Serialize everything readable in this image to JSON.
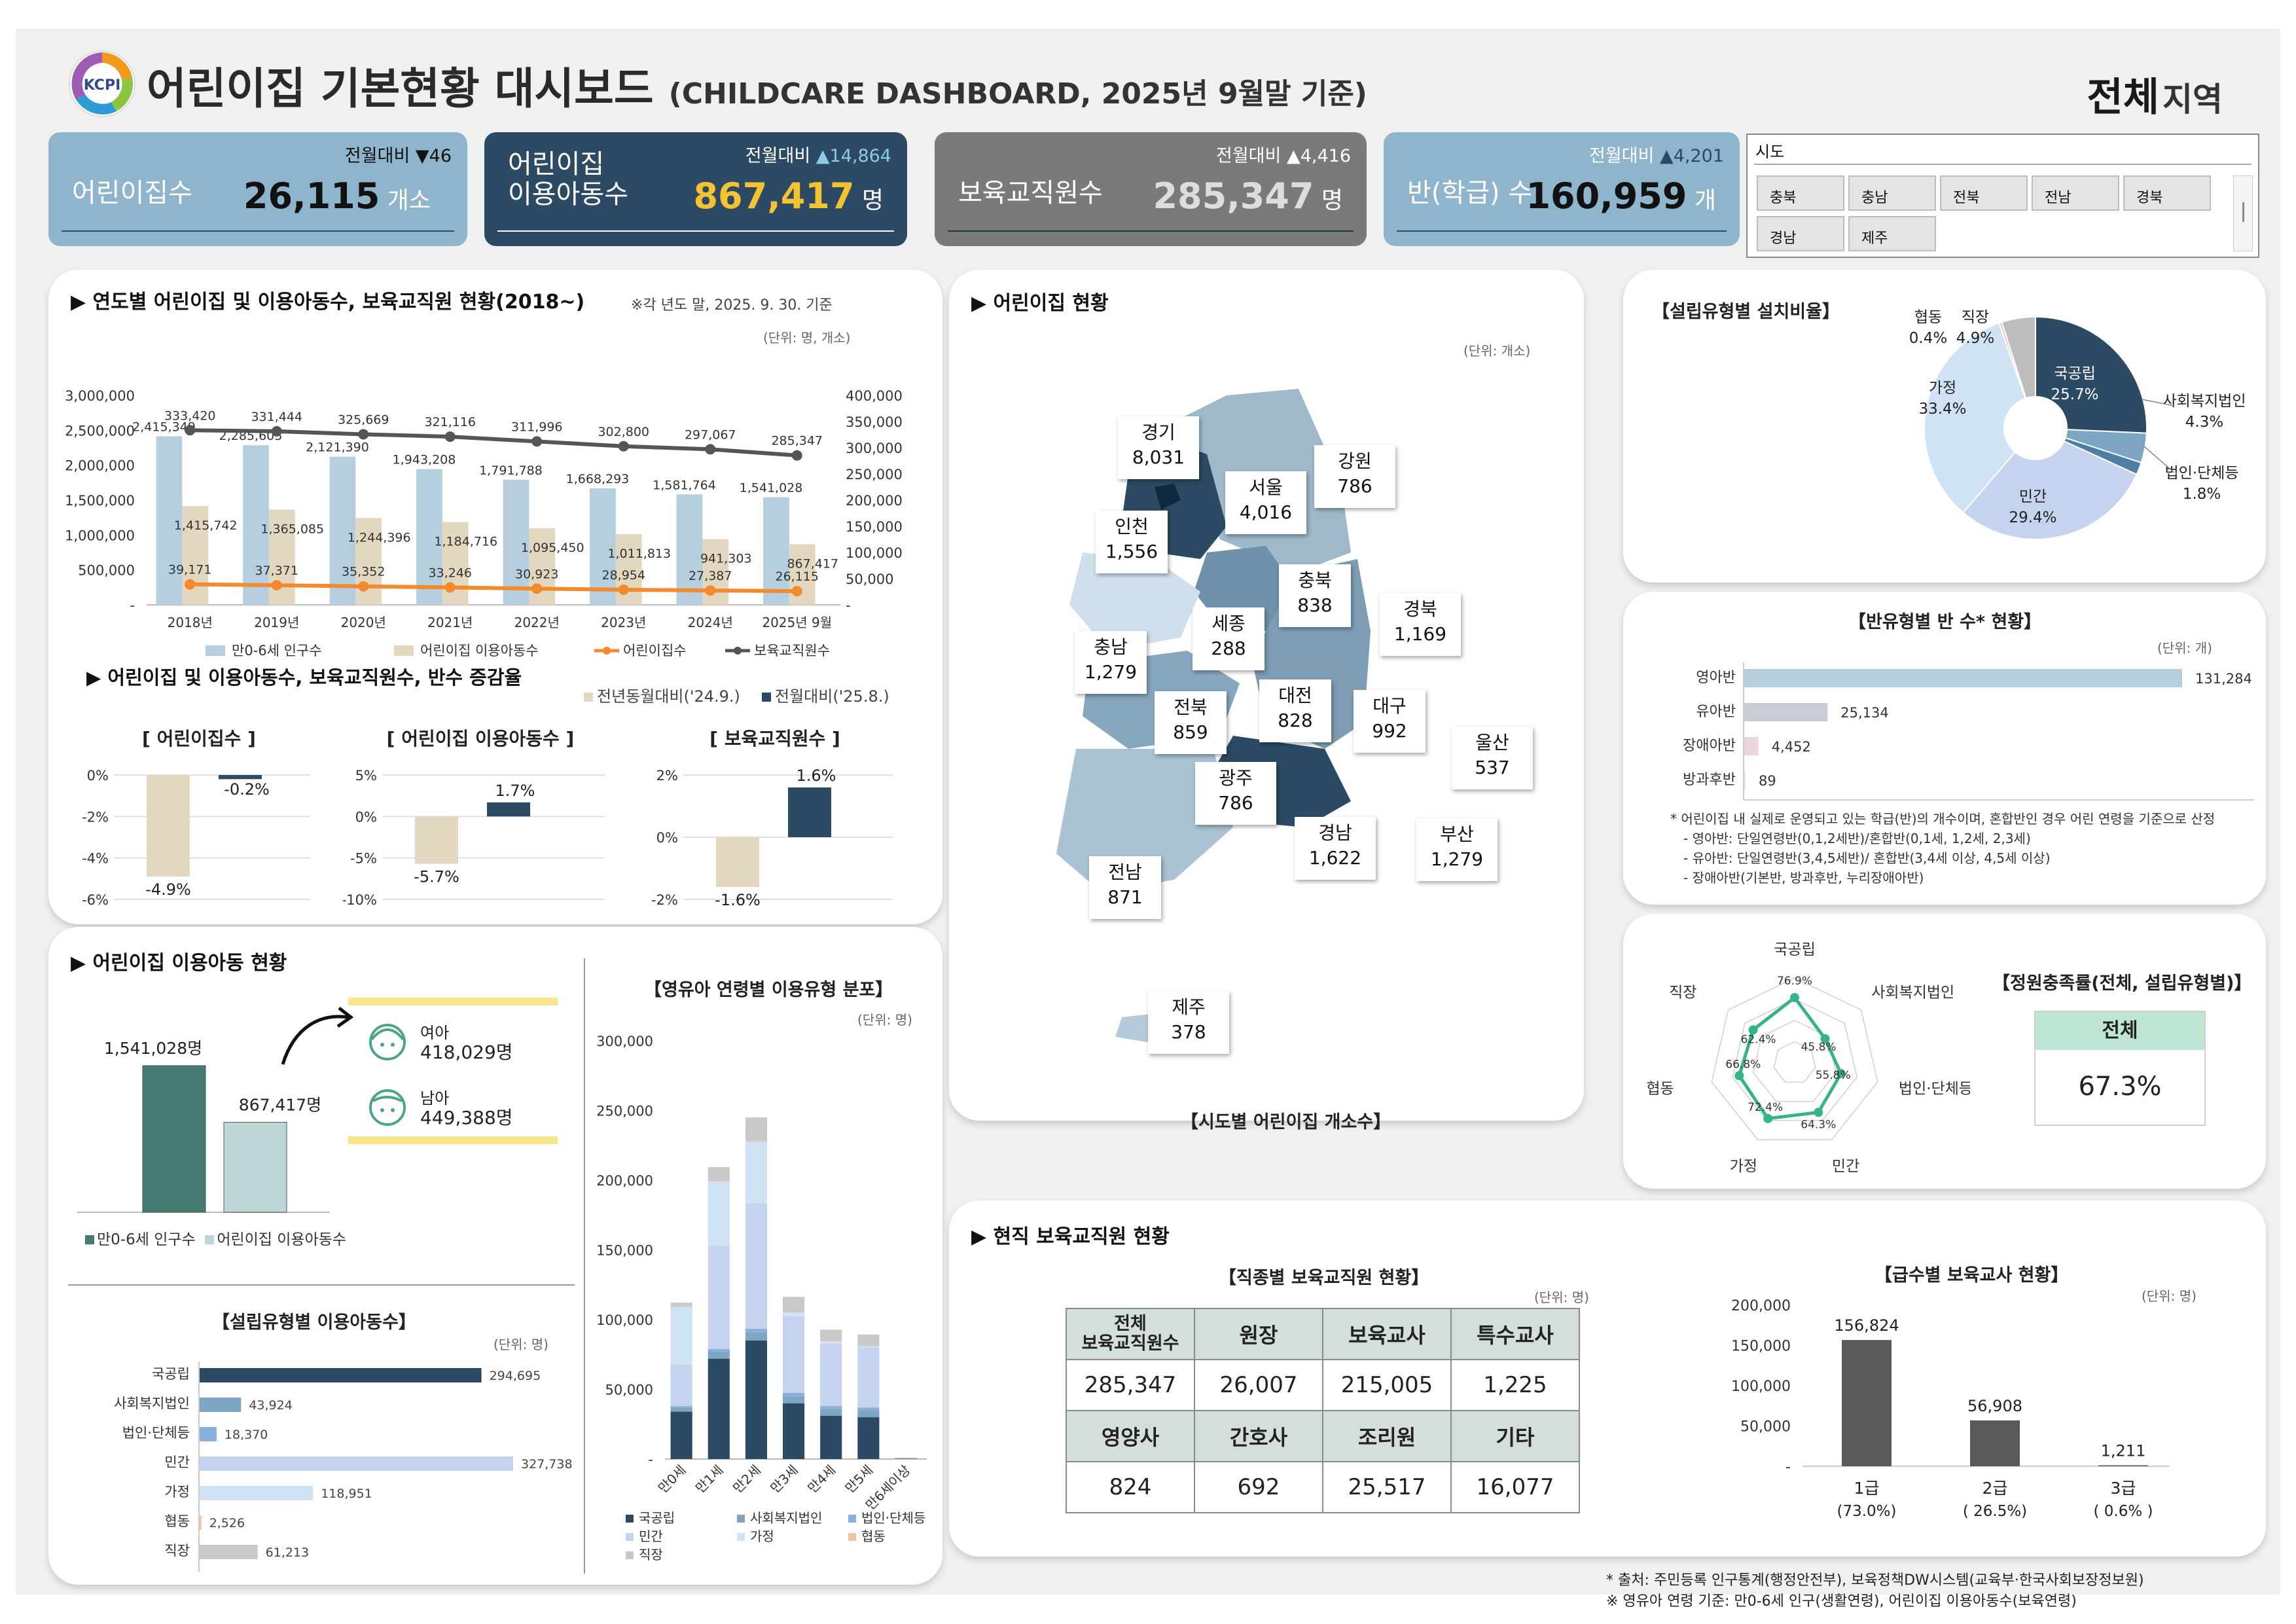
{
  "header": {
    "title": "어린이집 기본현황 대시보드",
    "subtitle": "(CHILDCARE DASHBOARD, 2025년 9월말 기준)",
    "logo_text": "KCPI",
    "region_bold": "전체",
    "region_suffix": "지역"
  },
  "kpis": [
    {
      "label": "어린이집수",
      "value": "26,115",
      "unit": "개소",
      "cmp_label": "전월대비",
      "cmp_arrow": "▼",
      "cmp_value": "46",
      "bg": "#8eb5cc",
      "fg": "#ffffff",
      "valcolor": "#111111",
      "cmpcolor": "#111111",
      "arrowcolor": "#111111",
      "linecolor": "#2c4a63"
    },
    {
      "label": "어린이집\n이용아동수",
      "value": "867,417",
      "unit": "명",
      "cmp_label": "전월대비",
      "cmp_arrow": "▲",
      "cmp_value": "14,864",
      "bg": "#2c4a63",
      "fg": "#ffffff",
      "valcolor": "#f5c231",
      "cmpcolor": "#ffffff",
      "arrowcolor": "#8ecbe8",
      "linecolor": "#ffffff"
    },
    {
      "label": "보육교직원수",
      "value": "285,347",
      "unit": "명",
      "cmp_label": "전월대비",
      "cmp_arrow": "▲",
      "cmp_value": "4,416",
      "bg": "#7a7a7a",
      "fg": "#ffffff",
      "valcolor": "#dddddd",
      "cmpcolor": "#ffffff",
      "arrowcolor": "#ffffff",
      "linecolor": "#1e3a2a"
    },
    {
      "label": "반(학급) 수",
      "value": "160,959",
      "unit": "개",
      "cmp_label": "전월대비",
      "cmp_arrow": "▲",
      "cmp_value": "4,201",
      "bg": "#8eb5cc",
      "fg": "#ffffff",
      "valcolor": "#111111",
      "cmpcolor": "#ffffff",
      "arrowcolor": "#2c4a63",
      "linecolor": "#2c4a63"
    }
  ],
  "slicer": {
    "title": "시도",
    "items": [
      "충북",
      "충남",
      "전북",
      "전남",
      "경북",
      "경남",
      "제주"
    ]
  },
  "yearly": {
    "title": "▶ 연도별 어린이집 및 이용아동수, 보육교직원 현황(2018~)",
    "note": "※각 년도 말, 2025. 9. 30. 기준",
    "unit": "(단위: 명, 개소)"
  },
  "change": {
    "title": "▶ 어린이집 및 이용아동수, 보육교직원수, 반수 증감율",
    "legend_prev_year": "전년동월대비('24.9.)",
    "legend_prev_month": "전월대비('25.8.)"
  },
  "usage": {
    "title": "▶ 어린이집 이용아동 현황",
    "girls_label": "여아",
    "girls_value": "418,029명",
    "boys_label": "남아",
    "boys_value": "449,388명"
  },
  "age_dist": {
    "title": "【영유아 연령별 이용유형 분포】",
    "unit": "(단위: 명)"
  },
  "estab_children": {
    "title": "【설립유형별 이용아동수】",
    "unit": "(단위: 명)"
  },
  "map": {
    "title": "▶ 어린이집 현황",
    "unit": "(단위: 개소)",
    "caption": "【시도별 어린이집 개소수】",
    "regions": [
      {
        "name": "경기",
        "value": "8,031"
      },
      {
        "name": "서울",
        "value": "4,016"
      },
      {
        "name": "강원",
        "value": "786"
      },
      {
        "name": "인천",
        "value": "1,556"
      },
      {
        "name": "충북",
        "value": "838"
      },
      {
        "name": "세종",
        "value": "288"
      },
      {
        "name": "경북",
        "value": "1,169"
      },
      {
        "name": "충남",
        "value": "1,279"
      },
      {
        "name": "전북",
        "value": "859"
      },
      {
        "name": "대전",
        "value": "828"
      },
      {
        "name": "대구",
        "value": "992"
      },
      {
        "name": "울산",
        "value": "537"
      },
      {
        "name": "광주",
        "value": "786"
      },
      {
        "name": "경남",
        "value": "1,622"
      },
      {
        "name": "부산",
        "value": "1,279"
      },
      {
        "name": "전남",
        "value": "871"
      },
      {
        "name": "제주",
        "value": "378"
      }
    ]
  },
  "estab_ratio": {
    "title": "【설립유형별 설치비율】"
  },
  "class_type": {
    "title": "【반유형별 반 수* 현황】",
    "unit": "(단위: 개)",
    "notes": [
      "* 어린이집 내 실제로 운영되고 있는 학급(반)의 개수이며, 혼합반인 경우 어린 연령을 기준으로 산정",
      "- 영아반: 단일연령반(0,1,2세반)/혼합반(0,1세, 1,2세, 2,3세)",
      "- 유아반: 단일연령반(3,4,5세반)/ 혼합반(3,4세 이상, 4,5세 이상)",
      "- 장애아반(기본반, 방과후반, 누리장애아반)"
    ]
  },
  "capacity": {
    "title": "【정원충족률(전체, 설립유형별)】",
    "box_label": "전체",
    "box_value": "67.3%"
  },
  "staff": {
    "title": "▶ 현직 보육교직원 현황",
    "table_title": "【직종별 보육교직원 현황】",
    "unit": "(단위: 명)",
    "row1_headers": [
      "전체\n보육교직원수",
      "원장",
      "보육교사",
      "특수교사"
    ],
    "row1_values": [
      "285,347",
      "26,007",
      "215,005",
      "1,225"
    ],
    "row2_headers": [
      "영양사",
      "간호사",
      "조리원",
      "기타"
    ],
    "row2_values": [
      "824",
      "692",
      "25,517",
      "16,077"
    ],
    "grade_title": "【급수별 보육교사 현황】",
    "grade_unit": "(단위: 명)"
  },
  "footer": [
    "* 출처: 주민등록 인구통계(행정안전부), 보육정책DW시스템(교육부·한국사회보장정보원)",
    "※ 영유아 연령 기준: 만0-6세 인구(생활연령), 어린이집 이용아동수(보육연령)"
  ],
  "chart_data": [
    {
      "id": "yearly",
      "type": "bar",
      "categories": [
        "2018년",
        "2019년",
        "2020년",
        "2021년",
        "2022년",
        "2023년",
        "2024년",
        "2025년 9월"
      ],
      "y_left_ticks": [
        "3,000,000",
        "2,500,000",
        "2,000,000",
        "1,500,000",
        "1,000,000",
        "500,000",
        "-"
      ],
      "y_right_ticks": [
        "400,000",
        "350,000",
        "300,000",
        "250,000",
        "200,000",
        "150,000",
        "100,000",
        "50,000",
        "-"
      ],
      "ylim_left": [
        0,
        3000000
      ],
      "ylim_right": [
        0,
        400000
      ],
      "series": [
        {
          "name": "만0-6세 인구수",
          "type": "bar",
          "axis": "left",
          "color": "#b6cfde",
          "values": [
            2415349,
            2285605,
            2121390,
            1943208,
            1791788,
            1668293,
            1581764,
            1541028
          ],
          "labels": [
            "2,415,349",
            "2,285,605",
            "2,121,390",
            "1,943,208",
            "1,791,788",
            "1,668,293",
            "1,581,764",
            "1,541,028"
          ]
        },
        {
          "name": "어린이집 이용아동수",
          "type": "bar",
          "axis": "left",
          "color": "#e3d8bf",
          "values": [
            1415742,
            1365085,
            1244396,
            1184716,
            1095450,
            1011813,
            941303,
            867417
          ],
          "labels": [
            "1,415,742",
            "1,365,085",
            "1,244,396",
            "1,184,716",
            "1,095,450",
            "1,011,813",
            "941,303",
            "867,417"
          ]
        },
        {
          "name": "어린이집수",
          "type": "line",
          "axis": "right",
          "color": "#f28a2e",
          "values": [
            39171,
            37371,
            35352,
            33246,
            30923,
            28954,
            27387,
            26115
          ],
          "labels": [
            "39,171",
            "37,371",
            "35,352",
            "33,246",
            "30,923",
            "28,954",
            "27,387",
            "26,115"
          ]
        },
        {
          "name": "보육교직원수",
          "type": "line",
          "axis": "right",
          "color": "#555555",
          "values": [
            333420,
            331444,
            325669,
            321116,
            311996,
            302800,
            297067,
            285347
          ],
          "labels": [
            "333,420",
            "331,444",
            "325,669",
            "321,116",
            "311,996",
            "302,800",
            "297,067",
            "285,347"
          ]
        }
      ]
    },
    {
      "id": "chg_centers",
      "type": "bar",
      "title": "[ 어린이집수 ]",
      "ylim": [
        -6,
        0
      ],
      "ticks": [
        "0%",
        "-2%",
        "-4%",
        "-6%"
      ],
      "values": [
        -4.9,
        -0.2
      ],
      "labels": [
        "-4.9%",
        "-0.2%"
      ],
      "series_names": [
        "전년동월대비('24.9.)",
        "전월대비('25.8.)"
      ]
    },
    {
      "id": "chg_children",
      "type": "bar",
      "title": "[ 어린이집 이용아동수 ]",
      "ylim": [
        -10,
        5
      ],
      "ticks": [
        "5%",
        "0%",
        "-5%",
        "-10%"
      ],
      "values": [
        -5.7,
        1.7
      ],
      "labels": [
        "-5.7%",
        "1.7%"
      ],
      "series_names": [
        "전년동월대비('24.9.)",
        "전월대비('25.8.)"
      ]
    },
    {
      "id": "chg_staff",
      "type": "bar",
      "title": "[ 보육교직원수 ]",
      "ylim": [
        -2,
        2
      ],
      "ticks": [
        "2%",
        "0%",
        "-2%"
      ],
      "values": [
        -1.6,
        1.6
      ],
      "labels": [
        "-1.6%",
        "1.6%"
      ],
      "series_names": [
        "전년동월대비('24.9.)",
        "전월대비('25.8.)"
      ]
    },
    {
      "id": "usage_bars",
      "type": "bar",
      "categories": [
        "만0-6세 인구수",
        "어린이집 이용아동수"
      ],
      "values": [
        1541028,
        867417
      ],
      "labels": [
        "1,541,028명",
        "867,417명"
      ],
      "colors": [
        "#457a70",
        "#bcd7d5"
      ]
    },
    {
      "id": "estab_children",
      "type": "bar",
      "orientation": "horizontal",
      "categories": [
        "국공립",
        "사회복지법인",
        "법인·단체등",
        "민간",
        "가정",
        "협동",
        "직장"
      ],
      "values": [
        294695,
        43924,
        18370,
        327738,
        118951,
        2526,
        61213
      ],
      "labels": [
        "294,695",
        "43,924",
        "18,370",
        "327,738",
        "118,951",
        "2,526",
        "61,213"
      ],
      "colors": [
        "#2c4a63",
        "#7ea6c3",
        "#8aaede",
        "#c6d3ee",
        "#cfe3f5",
        "#f2c1a8",
        "#c9c9c9"
      ]
    },
    {
      "id": "age_dist",
      "type": "bar",
      "stacked": true,
      "categories": [
        "만0세",
        "만1세",
        "만2세",
        "만3세",
        "만4세",
        "만5세",
        "만6세이상"
      ],
      "ylim": [
        0,
        300000
      ],
      "ticks": [
        "300,000",
        "250,000",
        "200,000",
        "150,000",
        "100,000",
        "50,000",
        "-"
      ],
      "series": [
        {
          "name": "국공립",
          "color": "#2c4a63",
          "values": [
            34000,
            72000,
            85000,
            40000,
            31000,
            30000,
            300
          ]
        },
        {
          "name": "사회복지법인",
          "color": "#7ea6c3",
          "values": [
            3000,
            5000,
            6000,
            5000,
            5000,
            5000,
            50
          ]
        },
        {
          "name": "법인·단체등",
          "color": "#8aaede",
          "values": [
            1000,
            2000,
            2500,
            2500,
            2000,
            2000,
            30
          ]
        },
        {
          "name": "민간",
          "color": "#c6d3ee",
          "values": [
            30000,
            74000,
            90000,
            55000,
            45000,
            43000,
            600
          ]
        },
        {
          "name": "가정",
          "color": "#cfe3f5",
          "values": [
            41000,
            46000,
            44000,
            2500,
            1500,
            1000,
            100
          ]
        },
        {
          "name": "협동",
          "color": "#f2c1a8",
          "values": [
            200,
            400,
            500,
            300,
            300,
            300,
            10
          ]
        },
        {
          "name": "직장",
          "color": "#c9c9c9",
          "values": [
            3000,
            10000,
            17000,
            11000,
            8000,
            8000,
            100
          ]
        }
      ]
    },
    {
      "id": "estab_ratio",
      "type": "pie",
      "donut": true,
      "labels": [
        "국공립",
        "사회복지법인",
        "법인·단체등",
        "민간",
        "가정",
        "협동",
        "직장"
      ],
      "values": [
        25.7,
        4.3,
        1.8,
        29.4,
        33.4,
        0.4,
        4.9
      ],
      "value_labels": [
        "25.7%",
        "4.3%",
        "1.8%",
        "29.4%",
        "33.4%",
        "0.4%",
        "4.9%"
      ],
      "colors": [
        "#2c4a63",
        "#7ea6c3",
        "#4e7ea3",
        "#c6d3ee",
        "#cfe3f5",
        "#e5c9b6",
        "#bdbdbd"
      ]
    },
    {
      "id": "class_type",
      "type": "bar",
      "orientation": "horizontal",
      "categories": [
        "영아반",
        "유아반",
        "장애아반",
        "방과후반"
      ],
      "values": [
        131284,
        25134,
        4452,
        89
      ],
      "labels": [
        "131,284",
        "25,134",
        "4,452",
        "89"
      ],
      "colors": [
        "#b6cfde",
        "#c9ccd6",
        "#ecd6dd",
        "#e9e9e9"
      ]
    },
    {
      "id": "capacity",
      "type": "radar",
      "labels": [
        "국공립",
        "사회복지법인",
        "법인·단체등",
        "민간",
        "가정",
        "협동",
        "직장"
      ],
      "values": [
        76.9,
        45.8,
        55.8,
        64.3,
        72.4,
        66.8,
        62.4
      ],
      "value_labels": [
        "76.9%",
        "45.8%",
        "55.8%",
        "64.3%",
        "72.4%",
        "66.8%",
        "62.4%"
      ],
      "color": "#37b38c",
      "ylim": [
        0,
        100
      ]
    },
    {
      "id": "grade",
      "type": "bar",
      "categories": [
        "1급",
        "2급",
        "3급"
      ],
      "sublabels": [
        "(73.0%)",
        "( 26.5%)",
        "( 0.6% )"
      ],
      "values": [
        156824,
        56908,
        1211
      ],
      "labels": [
        "156,824",
        "56,908",
        "1,211"
      ],
      "ylim": [
        0,
        200000
      ],
      "ticks": [
        "200,000",
        "150,000",
        "100,000",
        "50,000",
        "-"
      ],
      "color": "#595959"
    }
  ]
}
